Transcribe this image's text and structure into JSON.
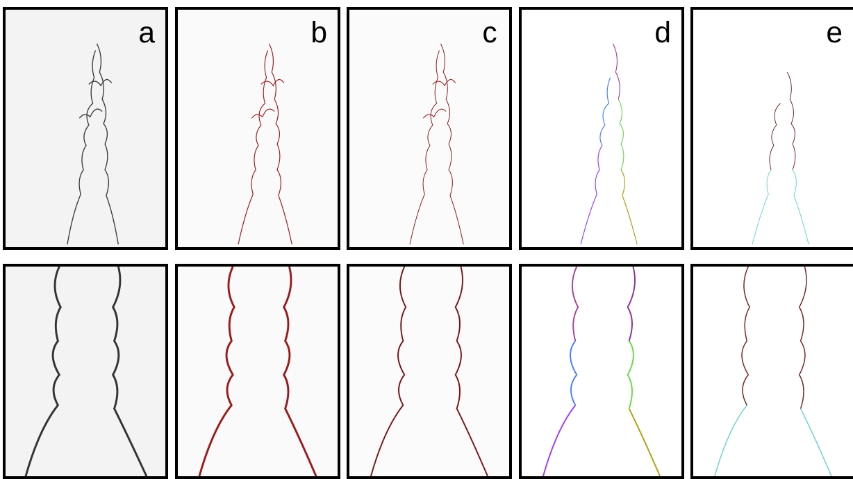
{
  "panels": [
    {
      "label": "a",
      "style": "grayscale",
      "color": "#3a3a3a",
      "background": "#f3f3f3"
    },
    {
      "label": "b",
      "style": "edge-red",
      "color": "#9b1b1b",
      "background": "#fafafa"
    },
    {
      "label": "c",
      "style": "edge-red-thin",
      "color": "#8a1515",
      "background": "#fbfbfb"
    },
    {
      "label": "d",
      "style": "edge-colored",
      "color": "#7a3cff",
      "background": "#ffffff"
    },
    {
      "label": "e",
      "style": "edge-cyan",
      "color": "#6ccfd6",
      "background": "#ffffff"
    }
  ]
}
